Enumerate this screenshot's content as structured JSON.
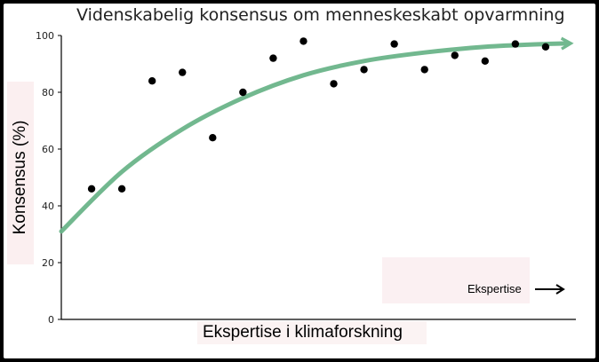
{
  "chart_data": {
    "type": "scatter",
    "title": "Videnskabelig konsensus om menneskeskabt opvarmning",
    "xlabel": "Ekspertise i klimaforskning",
    "ylabel": "Konsensus (%)",
    "ylim": [
      0,
      100
    ],
    "yticks": [
      0,
      20,
      40,
      60,
      80,
      100
    ],
    "xlim": [
      0,
      17
    ],
    "grid": false,
    "points": [
      {
        "x": 1,
        "y": 46
      },
      {
        "x": 2,
        "y": 46
      },
      {
        "x": 3,
        "y": 84
      },
      {
        "x": 4,
        "y": 87
      },
      {
        "x": 5,
        "y": 64
      },
      {
        "x": 6,
        "y": 80
      },
      {
        "x": 7,
        "y": 92
      },
      {
        "x": 8,
        "y": 98
      },
      {
        "x": 9,
        "y": 83
      },
      {
        "x": 10,
        "y": 88
      },
      {
        "x": 11,
        "y": 97
      },
      {
        "x": 12,
        "y": 88
      },
      {
        "x": 13,
        "y": 93
      },
      {
        "x": 14,
        "y": 91
      },
      {
        "x": 15,
        "y": 97
      },
      {
        "x": 16,
        "y": 96
      }
    ],
    "trend": {
      "color": "#6bb58a",
      "points": [
        {
          "x": 0,
          "y": 31
        },
        {
          "x": 2,
          "y": 52
        },
        {
          "x": 4,
          "y": 67
        },
        {
          "x": 6,
          "y": 78
        },
        {
          "x": 8,
          "y": 86
        },
        {
          "x": 10,
          "y": 91
        },
        {
          "x": 12,
          "y": 94
        },
        {
          "x": 14,
          "y": 96
        },
        {
          "x": 16,
          "y": 97
        },
        {
          "x": 16.7,
          "y": 97.2
        }
      ]
    },
    "legend": {
      "label": "Ekspertise",
      "placement": "bottom-right"
    }
  }
}
